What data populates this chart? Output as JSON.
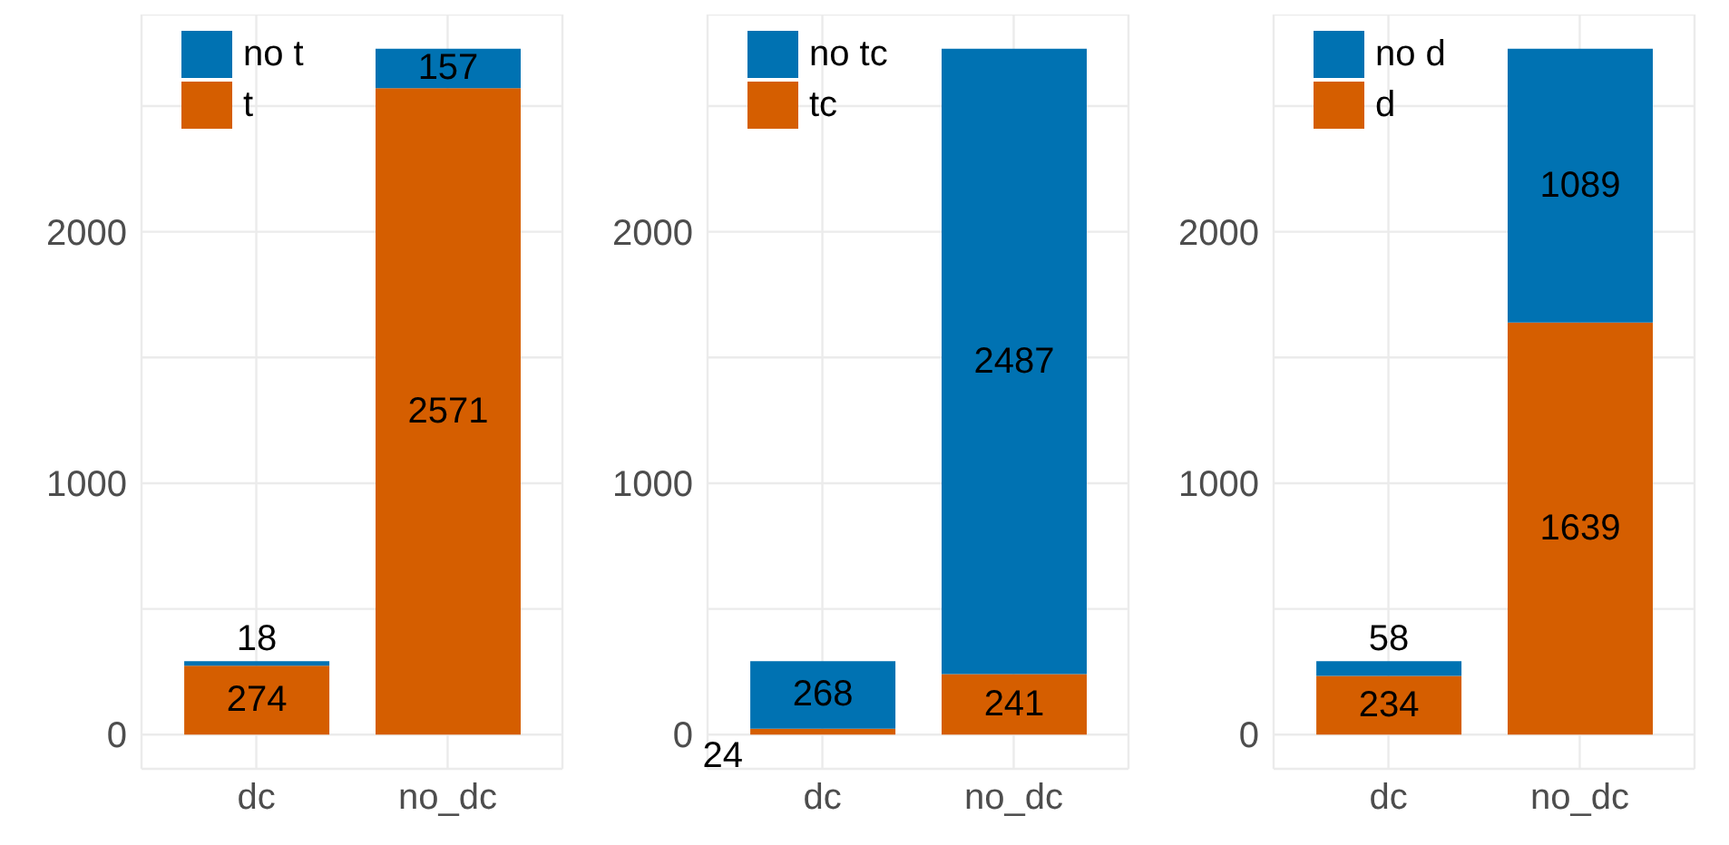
{
  "chart_data": [
    {
      "type": "bar",
      "stacked": true,
      "categories": [
        "dc",
        "no_dc"
      ],
      "series": [
        {
          "name": "t",
          "color": "#d55e00",
          "values": [
            274,
            2571
          ]
        },
        {
          "name": "no t",
          "color": "#0072b2",
          "values": [
            18,
            157
          ]
        }
      ],
      "ylim": [
        -136,
        2864
      ],
      "yticks": [
        0,
        {
          "value": 500,
          "label": null
        },
        1000,
        {
          "value": 1500,
          "label": null
        },
        2000,
        {
          "value": 2500,
          "label": null
        }
      ],
      "grid": true,
      "legend": "top left",
      "data_labels": true
    },
    {
      "type": "bar",
      "stacked": true,
      "categories": [
        "dc",
        "no_dc"
      ],
      "series": [
        {
          "name": "tc",
          "color": "#d55e00",
          "values": [
            24,
            241
          ]
        },
        {
          "name": "no tc",
          "color": "#0072b2",
          "values": [
            268,
            2487
          ]
        }
      ],
      "ylim": [
        -136,
        2864
      ],
      "yticks": [
        0,
        {
          "value": 500,
          "label": null
        },
        1000,
        {
          "value": 1500,
          "label": null
        },
        2000,
        {
          "value": 2500,
          "label": null
        }
      ],
      "grid": true,
      "legend": "top left",
      "data_labels": true
    },
    {
      "type": "bar",
      "stacked": true,
      "categories": [
        "dc",
        "no_dc"
      ],
      "series": [
        {
          "name": "d",
          "color": "#d55e00",
          "values": [
            234,
            1639
          ]
        },
        {
          "name": "no d",
          "color": "#0072b2",
          "values": [
            58,
            1089
          ]
        }
      ],
      "ylim": [
        -136,
        2864
      ],
      "yticks": [
        0,
        {
          "value": 500,
          "label": null
        },
        1000,
        {
          "value": 1500,
          "label": null
        },
        2000,
        {
          "value": 2500,
          "label": null
        }
      ],
      "grid": true,
      "legend": "top left",
      "data_labels": true
    }
  ]
}
